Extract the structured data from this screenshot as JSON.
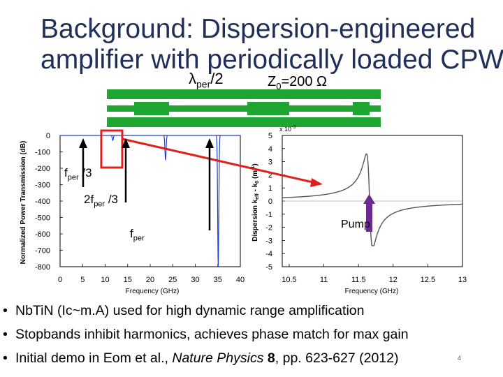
{
  "slide": {
    "title_line1": "Background: Dispersion-engineered",
    "title_line2": "amplifier with periodically loaded CPW",
    "lambda_label": "λ",
    "lambda_sub": "per",
    "lambda_tail": "/2",
    "z_label": "Z",
    "z_sub": "0",
    "z_tail": "=200 Ω",
    "page_number": "4",
    "colors": {
      "title": "#1f2f59",
      "cpw_green": "#1fa532",
      "highlight_red": "#e0201c",
      "curve_blue": "#1f3fd0",
      "arrow_purple": "#6a2a8f"
    }
  },
  "annotations": {
    "fper3_main": "f",
    "fper3_sub": "per",
    "fper3_tail": " /3",
    "f2per3_main": "2f",
    "f2per3_sub": "per",
    "f2per3_tail": " /3",
    "fper_main": "f",
    "fper_sub": "per",
    "pump": "Pump"
  },
  "chart_data": [
    {
      "type": "line",
      "ylabel": "Normalized Power Transmission (dB)",
      "xlabel": "Frequency (GHz)",
      "xlim": [
        0,
        40
      ],
      "ylim": [
        -800,
        0
      ],
      "x_ticks": [
        "0",
        "5",
        "10",
        "15",
        "20",
        "25",
        "30",
        "35",
        "40"
      ],
      "y_ticks": [
        "0",
        "-100",
        "-200",
        "-300",
        "-400",
        "-500",
        "-600",
        "-700",
        "-800"
      ],
      "stopbands": [
        {
          "center_ghz": 11.7,
          "depth_db": -30
        },
        {
          "center_ghz": 23.4,
          "depth_db": -150
        },
        {
          "center_ghz": 35.1,
          "depth_db": -800
        }
      ]
    },
    {
      "type": "line",
      "ylabel": "Dispersion  k_eff - k_0 (m^-1)",
      "xlabel": "Frequency (GHz)",
      "y_multiplier": "x 10",
      "y_multiplier_exp": "-3",
      "xlim": [
        10.4,
        13
      ],
      "ylim": [
        -5,
        5
      ],
      "x_ticks": [
        "10.5",
        "11",
        "11.5",
        "12",
        "12.5",
        "13"
      ],
      "y_ticks": [
        "5",
        "4",
        "3",
        "2",
        "1",
        "0",
        "-1",
        "-2",
        "-3",
        "-4",
        "-5"
      ],
      "resonance_ghz": 11.66,
      "peak": 3.6,
      "trough": -3.4
    }
  ],
  "bullets": [
    {
      "segments": [
        {
          "text": "Nb",
          "style": "normal"
        },
        {
          "text": "Ti",
          "style": "normal"
        },
        {
          "text": "N (Ic~m.A) used for high dynamic range amplification",
          "style": "normal"
        }
      ]
    },
    {
      "segments": [
        {
          "text": "Stopbands inhibit harmonics, achieves phase match for max gain",
          "style": "normal"
        }
      ]
    },
    {
      "segments": [
        {
          "text": "Initial demo in Eom et al., ",
          "style": "normal"
        },
        {
          "text": "Nature Physics",
          "style": "italic"
        },
        {
          "text": " ",
          "style": "normal"
        },
        {
          "text": "8",
          "style": "bold"
        },
        {
          "text": ", pp. 623-627 (2012)",
          "style": "normal"
        }
      ]
    }
  ]
}
